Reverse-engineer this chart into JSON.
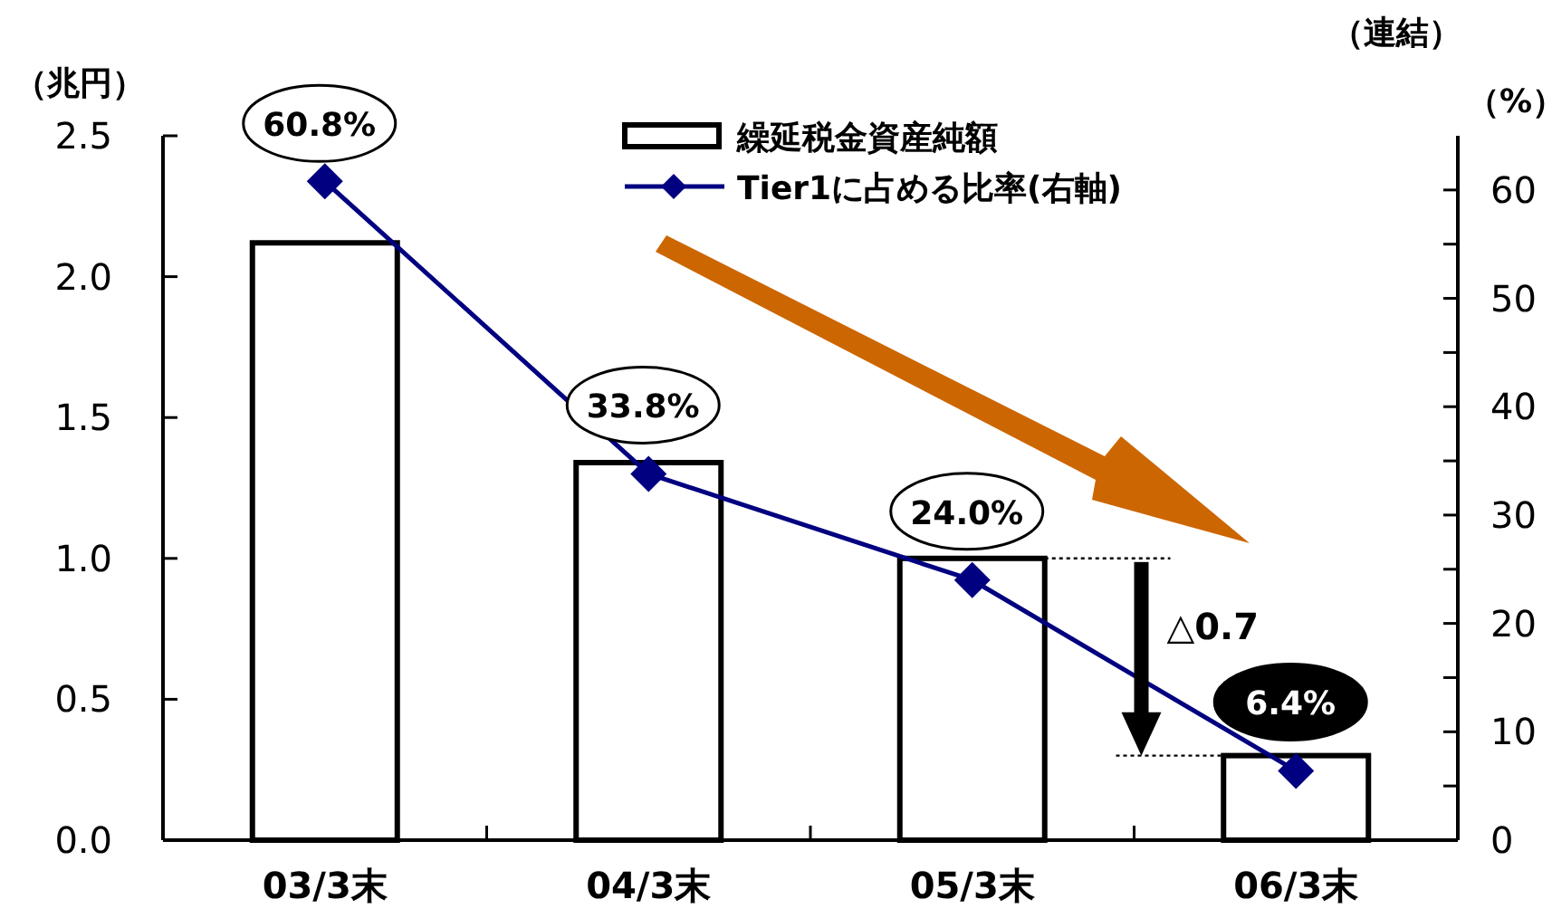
{
  "chart_data": {
    "type": "bar",
    "categories": [
      "03/3末",
      "04/3末",
      "05/3末",
      "06/3末"
    ],
    "series": [
      {
        "name": "繰延税金資産純額",
        "color": "#ffffff",
        "values": [
          2.12,
          1.34,
          1.0,
          0.3
        ]
      },
      {
        "name": "Tier1に占める比率(右軸)",
        "type": "line",
        "axis": "y2",
        "color": "#000080",
        "values": [
          60.8,
          33.8,
          24.0,
          6.4
        ],
        "value_labels": [
          "60.8%",
          "33.8%",
          "24.0%",
          "6.4%"
        ]
      }
    ],
    "ylabel": "（兆円）",
    "y2label": "（%）",
    "ylim": [
      0,
      2.5
    ],
    "yticks": [
      {
        "value": 0,
        "label": "0.0"
      },
      0.5,
      {
        "value": 1,
        "label": "1.0"
      },
      1.5,
      {
        "value": 2,
        "label": "2.0"
      },
      2.5
    ],
    "y2lim": [
      0,
      65
    ],
    "y2ticks": [
      0,
      {
        "value": 5,
        "label": null
      },
      10,
      {
        "value": 15,
        "label": null
      },
      20,
      {
        "value": 25,
        "label": null
      },
      30,
      {
        "value": 35,
        "label": null
      },
      40,
      {
        "value": 45,
        "label": null
      },
      50,
      {
        "value": 55,
        "label": null
      },
      60
    ],
    "ref_lines": [
      {
        "axis": "y",
        "value": 1.0,
        "line_style": "dotted"
      },
      {
        "axis": "y",
        "value": 0.3,
        "line_style": "dotted"
      }
    ],
    "annotations": [
      "（連結）",
      "△0.7"
    ],
    "legend": "top",
    "marker": "diamond",
    "grid": false
  }
}
